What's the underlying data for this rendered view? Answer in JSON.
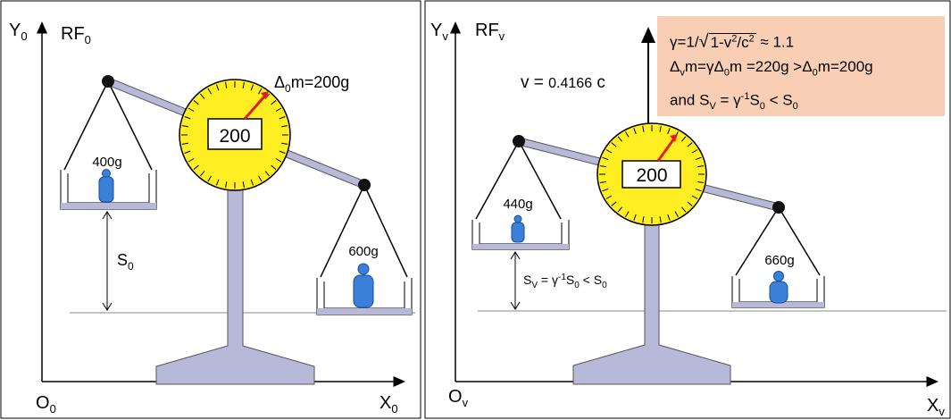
{
  "left": {
    "y_axis": "Y",
    "y_axis_sub": "0",
    "frame": "RF",
    "frame_sub": "0",
    "origin": "O",
    "origin_sub": "0",
    "x_axis": "X",
    "x_axis_sub": "0",
    "dial_value": "200",
    "dial_label_prefix": "Δ",
    "dial_label_sub": "0",
    "dial_label_rest": "m=200g",
    "left_pan_mass": "400g",
    "right_pan_mass": "600g",
    "height_label": "S",
    "height_label_sub": "0"
  },
  "right": {
    "y_axis": "Y",
    "y_axis_sub": "v",
    "frame": "RF",
    "frame_sub": "v",
    "origin": "O",
    "origin_sub": "v",
    "x_axis": "X",
    "x_axis_sub": "v",
    "velocity_label": "v = ",
    "velocity_value": "0.4166",
    "velocity_unit": " c",
    "dial_value": "200",
    "left_pan_mass": "440g",
    "right_pan_mass": "660g",
    "height_label": "S",
    "height_label_sub": "V",
    "height_label_rest": " = γ",
    "height_label_sup": "-1",
    "height_label_s": "S",
    "height_label_s_sub": "0",
    "height_label_tail": " < S",
    "height_label_tail_sub": "0"
  },
  "note": {
    "line1_a": "γ=1/",
    "line1_rad": "1-v",
    "line1_sup1": "2",
    "line1_mid": "/c",
    "line1_sup2": "2",
    "line1_b": " ≈ 1.1",
    "line2_a": "Δ",
    "line2_sub1": "v",
    "line2_b": "m=γΔ",
    "line2_sub2": "0",
    "line2_c": "m =220g >Δ",
    "line2_sub3": "0",
    "line2_d": "m=200g",
    "line3_a": "and S",
    "line3_sub1": "V",
    "line3_b": " = γ",
    "line3_sup": "-1",
    "line3_c": "S",
    "line3_sub2": "0",
    "line3_d": " < S",
    "line3_sub3": "0"
  },
  "colors": {
    "dial": "#ffee22",
    "stand": "#b8b8d8",
    "weight": "#3a7fd8",
    "needle": "#e02020",
    "note_bg": "#f8cfb4"
  }
}
